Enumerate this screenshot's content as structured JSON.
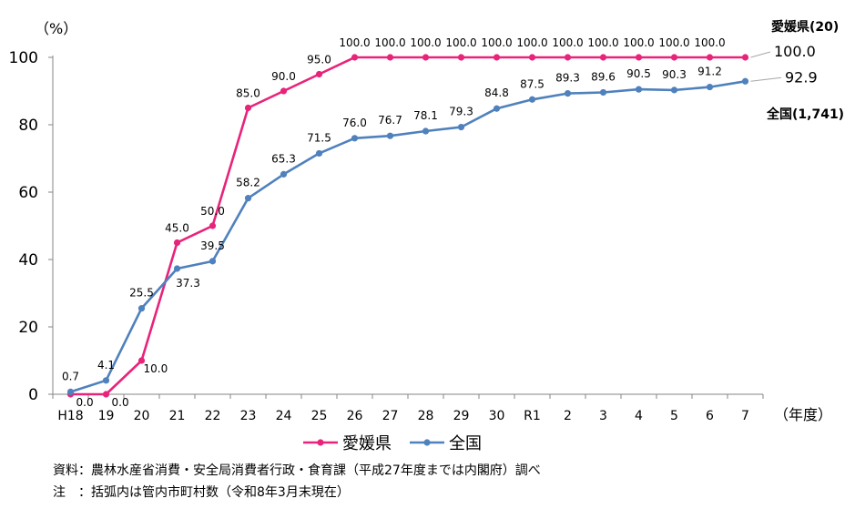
{
  "chart_data": {
    "type": "line",
    "unit_label": "（%）",
    "x_unit_label": "（年度）",
    "categories": [
      "H18",
      "19",
      "20",
      "21",
      "22",
      "23",
      "24",
      "25",
      "26",
      "27",
      "28",
      "29",
      "30",
      "R1",
      "2",
      "3",
      "4",
      "5",
      "6",
      "7"
    ],
    "ylim": [
      0,
      100
    ],
    "yticks": [
      0,
      20,
      40,
      60,
      80,
      100
    ],
    "grid": false,
    "legend_position": "bottom",
    "series": [
      {
        "name": "愛媛県",
        "color": "#e8237a",
        "end_annotation": "愛媛県(20)",
        "end_value_label": "100.0",
        "values": [
          0.0,
          0.0,
          10.0,
          45.0,
          50.0,
          85.0,
          90.0,
          95.0,
          100.0,
          100.0,
          100.0,
          100.0,
          100.0,
          100.0,
          100.0,
          100.0,
          100.0,
          100.0,
          100.0,
          100.0
        ],
        "labels": [
          "0.0",
          "0.0",
          "10.0",
          "45.0",
          "50.0",
          "85.0",
          "90.0",
          "95.0",
          "100.0",
          "100.0",
          "100.0",
          "100.0",
          "100.0",
          "100.0",
          "100.0",
          "100.0",
          "100.0",
          "100.0",
          "100.0",
          "100.0"
        ]
      },
      {
        "name": "全国",
        "color": "#4f81bd",
        "end_annotation": "全国(1,741)",
        "end_value_label": "92.9",
        "values": [
          0.7,
          4.1,
          25.5,
          37.3,
          39.5,
          58.2,
          65.3,
          71.5,
          76.0,
          76.7,
          78.1,
          79.3,
          84.8,
          87.5,
          89.3,
          89.6,
          90.5,
          90.3,
          91.2,
          92.9
        ],
        "labels": [
          "0.7",
          "4.1",
          "25.5",
          "37.3",
          "39.5",
          "58.2",
          "65.3",
          "71.5",
          "76.0",
          "76.7",
          "78.1",
          "79.3",
          "84.8",
          "87.5",
          "89.3",
          "89.6",
          "90.5",
          "90.3",
          "91.2",
          "92.9"
        ]
      }
    ]
  },
  "notes": {
    "source": "資料：農林水産省消費・安全局消費者行政・食育課（平成27年度までは内閣府）調べ",
    "note": "注　：括弧内は管内市町村数（令和8年3月末現在）"
  }
}
